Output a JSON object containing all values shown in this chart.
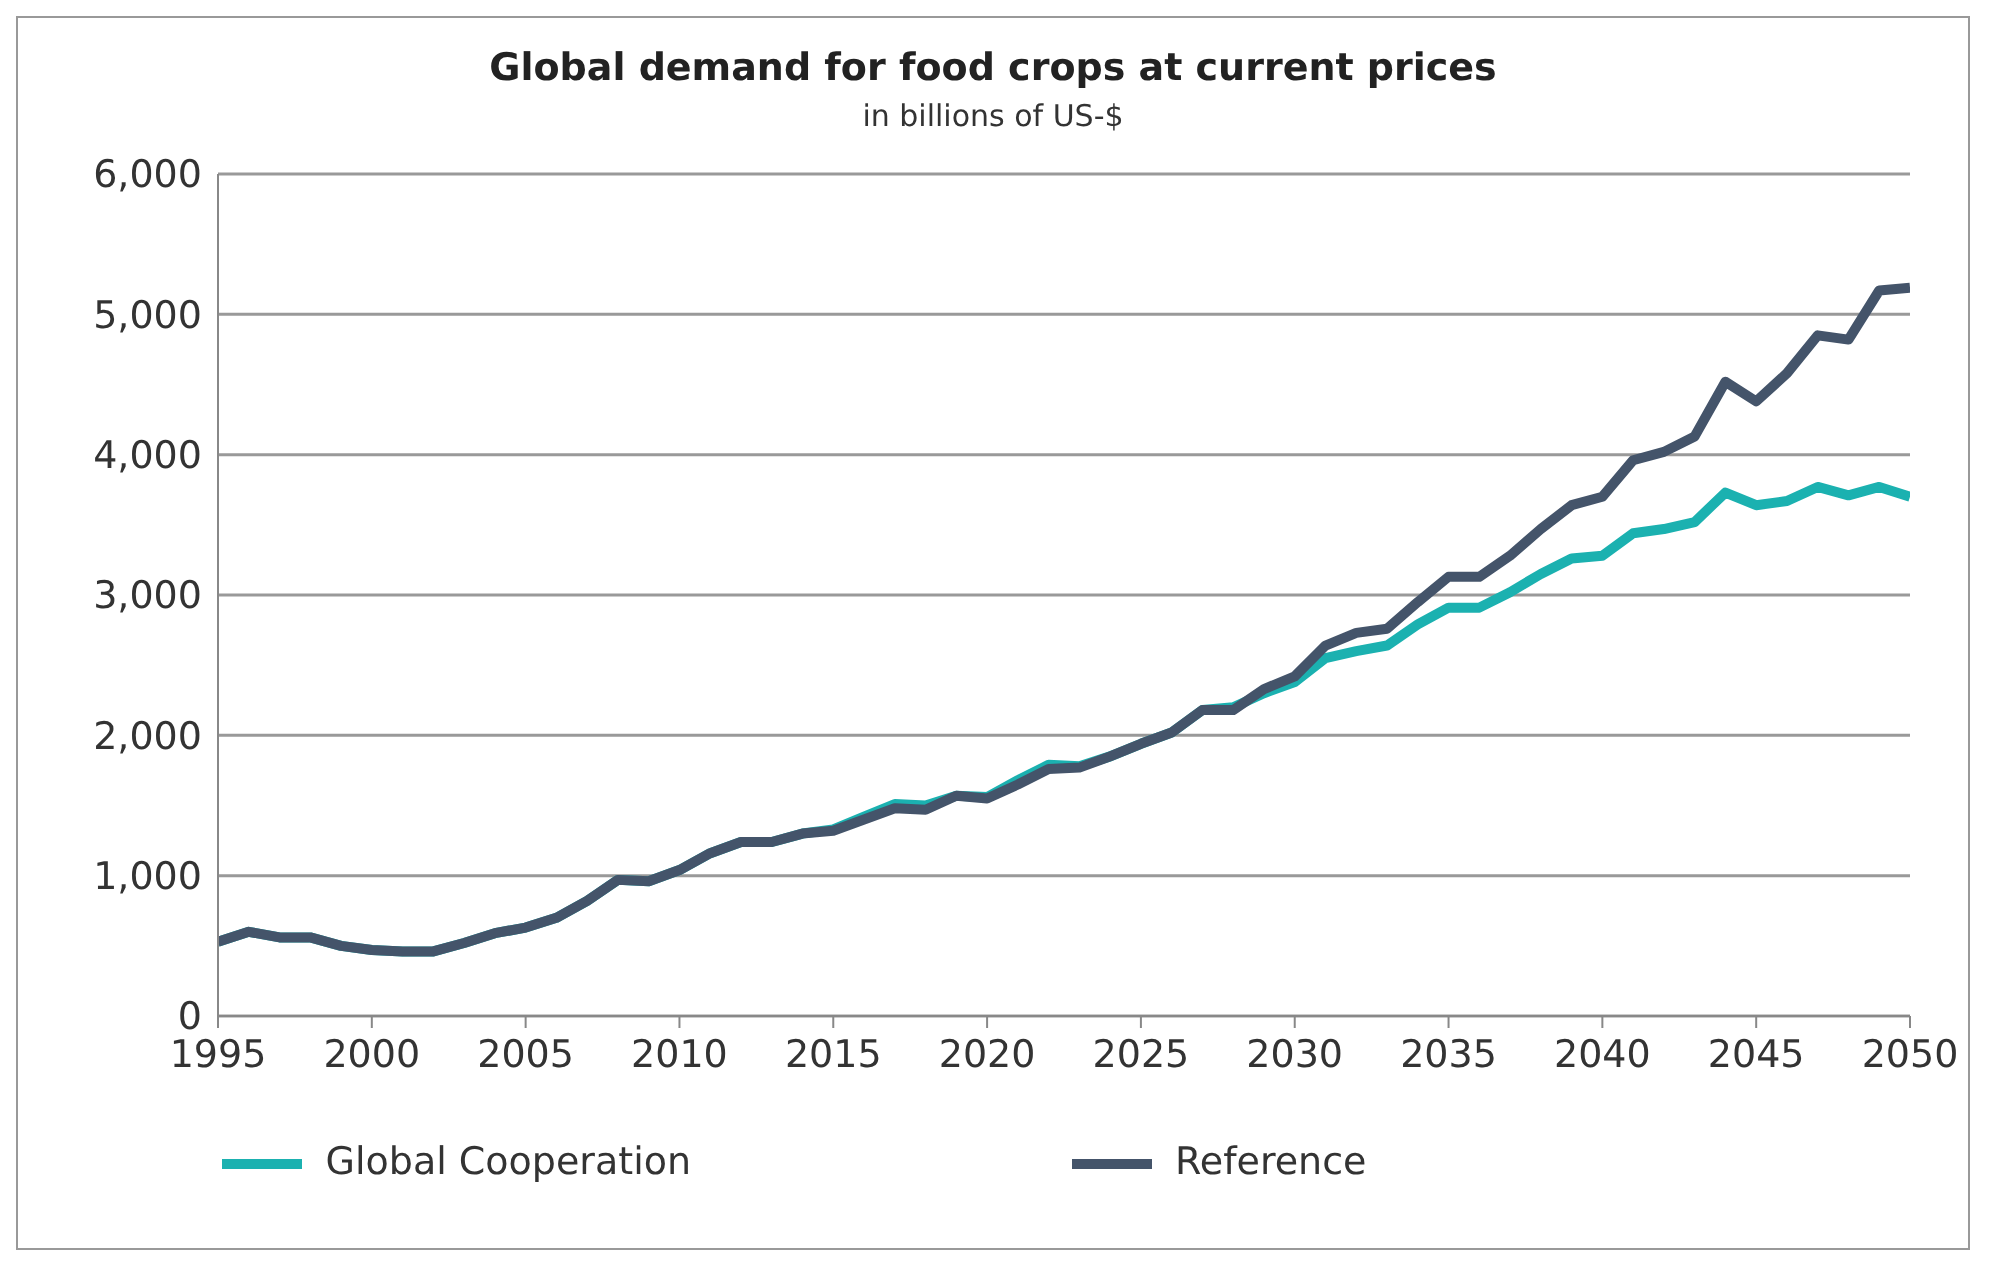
{
  "chart_data": {
    "type": "line",
    "title": "Global demand for food crops at current prices",
    "subtitle": "in billions of US-$",
    "x": [
      1995,
      1996,
      1997,
      1998,
      1999,
      2000,
      2001,
      2002,
      2003,
      2004,
      2005,
      2006,
      2007,
      2008,
      2009,
      2010,
      2011,
      2012,
      2013,
      2014,
      2015,
      2016,
      2017,
      2018,
      2019,
      2020,
      2021,
      2022,
      2023,
      2024,
      2025,
      2026,
      2027,
      2028,
      2029,
      2030,
      2031,
      2032,
      2033,
      2034,
      2035,
      2036,
      2037,
      2038,
      2039,
      2040,
      2041,
      2042,
      2043,
      2044,
      2045,
      2046,
      2047,
      2048,
      2049,
      2050
    ],
    "series": [
      {
        "name": "Global Cooperation",
        "color": "#1bb1b0",
        "values": [
          530,
          600,
          560,
          560,
          500,
          470,
          460,
          460,
          520,
          590,
          630,
          700,
          820,
          970,
          960,
          1040,
          1160,
          1240,
          1240,
          1300,
          1330,
          1420,
          1510,
          1500,
          1570,
          1560,
          1680,
          1790,
          1780,
          1850,
          1940,
          2020,
          2180,
          2200,
          2300,
          2380,
          2550,
          2600,
          2640,
          2790,
          2910,
          2910,
          3020,
          3150,
          3260,
          3280,
          3440,
          3470,
          3520,
          3730,
          3640,
          3670,
          3770,
          3710,
          3770,
          3700
        ]
      },
      {
        "name": "Reference",
        "color": "#44546a",
        "values": [
          530,
          600,
          560,
          560,
          500,
          470,
          460,
          460,
          520,
          590,
          630,
          700,
          820,
          970,
          960,
          1040,
          1160,
          1240,
          1240,
          1300,
          1320,
          1400,
          1480,
          1470,
          1570,
          1550,
          1650,
          1760,
          1770,
          1850,
          1940,
          2020,
          2180,
          2180,
          2330,
          2420,
          2640,
          2730,
          2760,
          2950,
          3130,
          3130,
          3280,
          3470,
          3640,
          3700,
          3960,
          4020,
          4130,
          4520,
          4380,
          4580,
          4850,
          4820,
          5170,
          5190
        ]
      }
    ],
    "xlim": [
      1995,
      2050
    ],
    "xticks": [
      1995,
      2000,
      2005,
      2010,
      2015,
      2020,
      2025,
      2030,
      2035,
      2040,
      2045,
      2050
    ],
    "ylim": [
      0,
      6000
    ],
    "yticks": [
      0,
      {
        "value": 1000,
        "label": "1,000"
      },
      {
        "value": 2000,
        "label": "2,000"
      },
      {
        "value": 3000,
        "label": "3,000"
      },
      {
        "value": 4000,
        "label": "4,000"
      },
      {
        "value": 5000,
        "label": "5,000"
      },
      {
        "value": 6000,
        "label": "6,000"
      }
    ],
    "grid": "y",
    "legend": "bottom",
    "marker": "none",
    "line_style": "solid"
  }
}
